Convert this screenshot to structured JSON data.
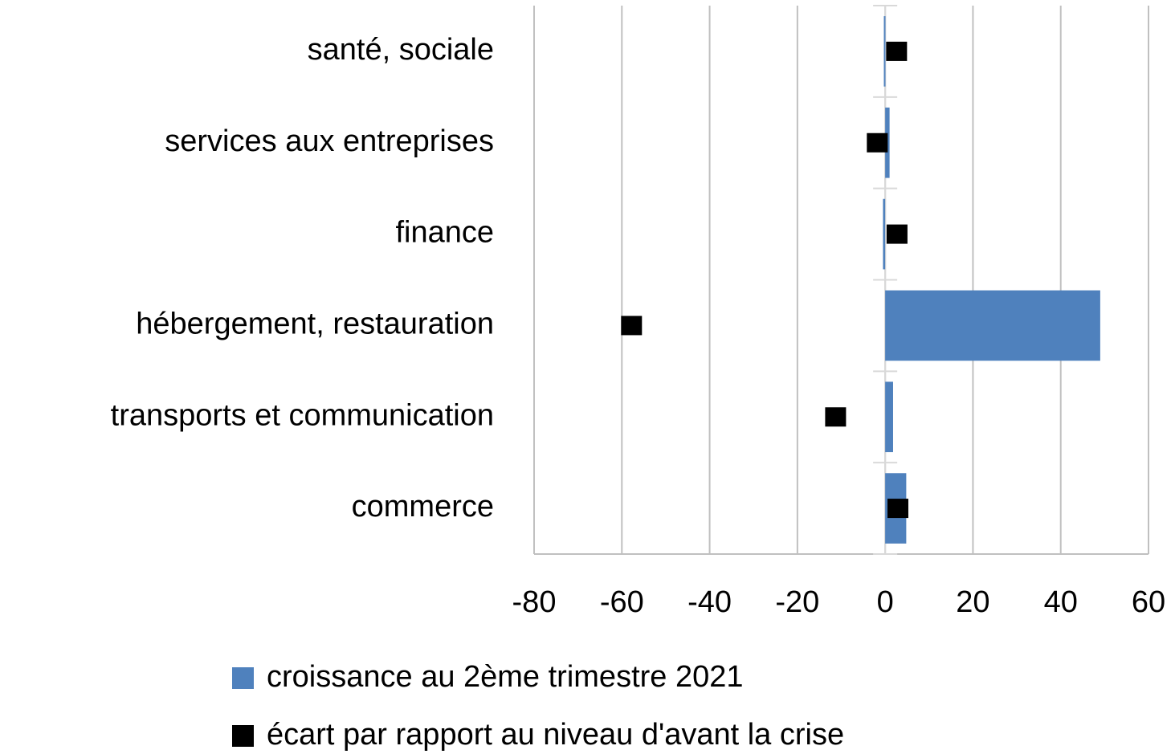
{
  "chart_data": {
    "type": "bar",
    "orientation": "horizontal",
    "categories": [
      "santé, sociale",
      "services aux entreprises",
      "finance",
      "hébergement, restauration",
      "transports et communication",
      "commerce"
    ],
    "series": [
      {
        "name": "croissance au 2ème trimestre 2021",
        "type": "bar",
        "color": "#4f81bd",
        "values": [
          -0.3,
          1,
          -0.5,
          49,
          1.8,
          4.8
        ]
      },
      {
        "name": "écart par rapport au niveau d'avant la crise",
        "type": "scatter",
        "color": "#000000",
        "values": [
          2.6,
          -1.8,
          2.7,
          -57.8,
          -11.3,
          2.9
        ]
      }
    ],
    "xlim": [
      -80,
      60
    ],
    "xticks": [
      -80,
      -60,
      -40,
      -20,
      0,
      20,
      40,
      60
    ],
    "grid": true,
    "legend": "bottom"
  }
}
